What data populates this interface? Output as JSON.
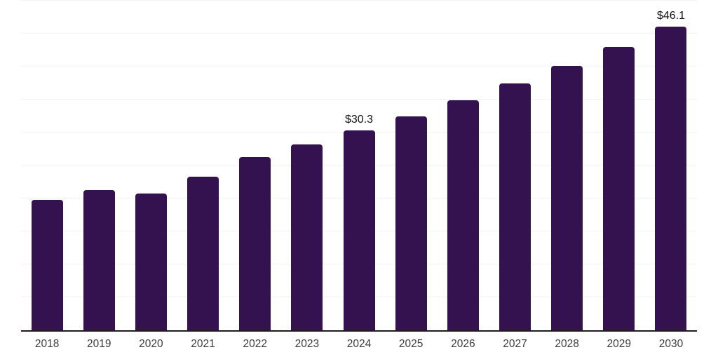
{
  "chart_data": {
    "type": "bar",
    "title": "",
    "xlabel": "",
    "ylabel": "",
    "categories": [
      "2018",
      "2019",
      "2020",
      "2021",
      "2022",
      "2023",
      "2024",
      "2025",
      "2026",
      "2027",
      "2028",
      "2029",
      "2030"
    ],
    "values": [
      19.8,
      21.3,
      20.7,
      23.3,
      26.3,
      28.2,
      30.3,
      32.5,
      34.9,
      37.4,
      40.1,
      43.0,
      46.1
    ],
    "data_labels": {
      "2024": "$30.3",
      "2030": "$46.1"
    },
    "ylim": [
      0,
      50
    ],
    "gridline_step": 5,
    "grid": true,
    "legend": false,
    "bar_color": "#341250",
    "value_label_color": "#111111",
    "tick_label_color": "#3d3d3d",
    "gridline_color": "#f2f2f2",
    "axis_line_color": "#1c1c1c"
  }
}
